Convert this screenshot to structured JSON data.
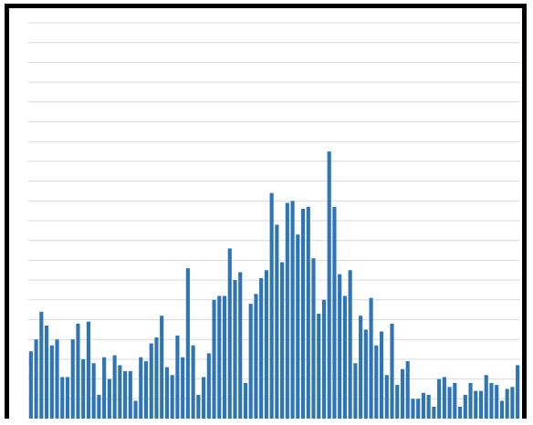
{
  "chart_data": {
    "type": "bar",
    "title": "",
    "xlabel": "",
    "ylabel": "",
    "ylim": [
      0,
      20
    ],
    "grid": true,
    "legend": "none",
    "series_color": "#2e75b6",
    "frame_color": "#000000",
    "grid_color": "#d9d9d9",
    "values": [
      3.4,
      4.0,
      5.4,
      4.7,
      3.7,
      4.0,
      2.1,
      2.1,
      4.0,
      4.8,
      3.0,
      4.9,
      2.8,
      1.2,
      3.1,
      2.0,
      3.2,
      2.7,
      2.4,
      2.4,
      0.9,
      3.1,
      2.9,
      3.8,
      4.1,
      5.2,
      2.6,
      2.2,
      4.2,
      3.1,
      7.6,
      3.7,
      1.2,
      2.1,
      3.3,
      6.0,
      6.2,
      6.2,
      8.6,
      7.0,
      7.4,
      1.8,
      5.8,
      6.3,
      7.1,
      7.5,
      11.4,
      9.8,
      7.9,
      10.9,
      11.0,
      9.3,
      10.6,
      10.7,
      8.1,
      5.3,
      6.0,
      13.5,
      10.7,
      7.3,
      6.2,
      7.5,
      2.8,
      5.2,
      4.5,
      6.1,
      3.7,
      4.4,
      2.2,
      4.8,
      1.7,
      2.5,
      2.9,
      1.0,
      1.0,
      1.3,
      1.2,
      0.6,
      2.0,
      2.1,
      1.6,
      1.8,
      0.6,
      1.2,
      1.8,
      1.4,
      1.4,
      2.2,
      1.8,
      1.7,
      0.9,
      1.5,
      1.6,
      2.7
    ]
  }
}
